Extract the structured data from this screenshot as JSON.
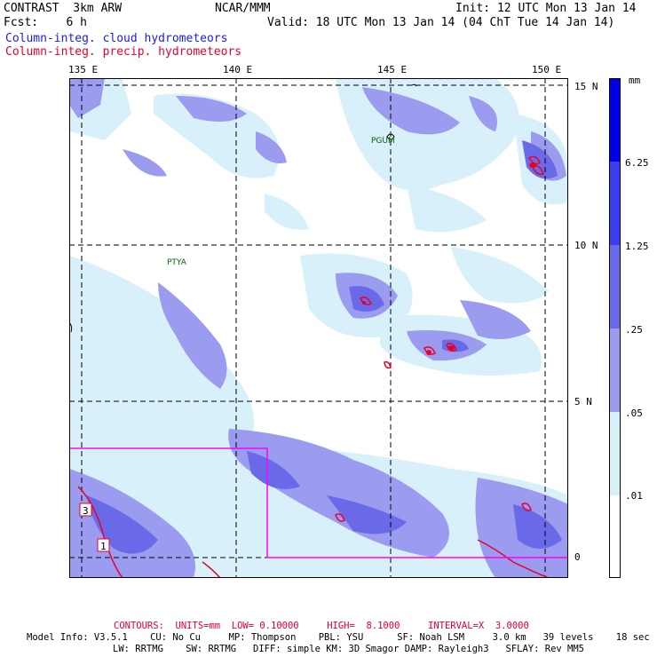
{
  "header": {
    "line1_left": "CONTRAST  3km ARW",
    "line1_mid": "NCAR/MMM",
    "line1_right": "Init: 12 UTC Mon 13 Jan 14",
    "line2_left": "Fcst:    6 h",
    "line2_right": "Valid: 18 UTC Mon 13 Jan 14 (04 ChT Tue 14 Jan 14)",
    "field1": "Column-integ. cloud hydrometeors",
    "field2": "Column-integ. precip. hydrometeors"
  },
  "map": {
    "lon_labels": [
      "135 E",
      "140 E",
      "145 E",
      "150 E"
    ],
    "lat_labels": [
      "15 N",
      "10 N",
      "5 N",
      "0"
    ],
    "stations": [
      {
        "label": "PGUM"
      },
      {
        "label": "PTYA"
      }
    ],
    "domain_labels": [
      "3",
      "1"
    ]
  },
  "colorbar": {
    "unit": "mm",
    "labels": [
      "6.25",
      "1.25",
      ".25",
      ".05",
      ".01"
    ],
    "colors": [
      "#0000e6",
      "#3c3cf0",
      "#6a6ae8",
      "#9b9bf0",
      "#d8f0fa",
      "#ffffff"
    ]
  },
  "footer": {
    "contours": "CONTOURS:  UNITS=mm  LOW= 0.10000     HIGH=  8.1000     INTERVAL=X  3.0000",
    "model_info": "Model Info: V3.5.1    CU: No Cu     MP: Thompson    PBL: YSU      SF: Noah LSM     3.0 km   39 levels    18 sec",
    "physics": "LW: RRTMG    SW: RRTMG   DIFF: simple KM: 3D Smagor DAMP: Rayleigh3   SFLAY: Rev MM5"
  },
  "colors": {
    "cloud_light": "#d8f0fa",
    "cloud_mid": "#9b9bf0",
    "cloud_dark": "#6a6ae8",
    "precip": "#e8002a",
    "domain_box": "#ff00ff"
  }
}
